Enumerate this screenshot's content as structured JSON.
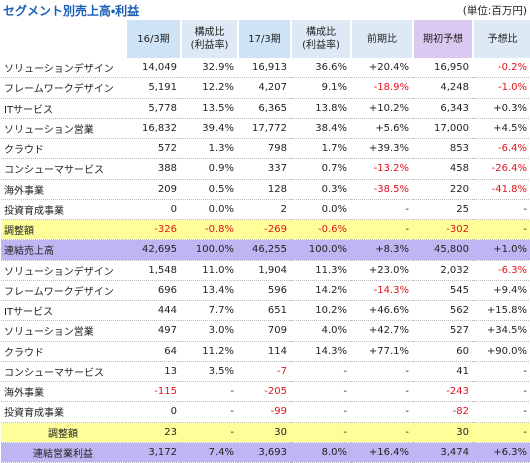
{
  "header": {
    "title": "セグメント別売上高・利益",
    "unit": "(単位:百万円)"
  },
  "table": {
    "columns": [
      "16/3期",
      "構成比\n(利益率)",
      "17/3期",
      "構成比\n(利益率)",
      "前期比",
      "期初予想",
      "予想比"
    ],
    "rows": [
      [
        "ソリューションデザイン",
        "14,049",
        "32.9%",
        "16,913",
        "36.6%",
        "+20.4%",
        "16,950",
        "-0.2%"
      ],
      [
        "フレームワークデザイン",
        "5,191",
        "12.2%",
        "4,207",
        "9.1%",
        "-18.9%",
        "4,248",
        "-1.0%"
      ],
      [
        "ITサービス",
        "5,778",
        "13.5%",
        "6,365",
        "13.8%",
        "+10.2%",
        "6,343",
        "+0.3%"
      ],
      [
        "ソリューション営業",
        "16,832",
        "39.4%",
        "17,772",
        "38.4%",
        "+5.6%",
        "17,000",
        "+4.5%"
      ],
      [
        "クラウド",
        "572",
        "1.3%",
        "798",
        "1.7%",
        "+39.3%",
        "853",
        "-6.4%"
      ],
      [
        "コンシューマサービス",
        "388",
        "0.9%",
        "337",
        "0.7%",
        "-13.2%",
        "458",
        "-26.4%"
      ],
      [
        "海外事業",
        "209",
        "0.5%",
        "128",
        "0.3%",
        "-38.5%",
        "220",
        "-41.8%"
      ],
      [
        "投資育成事業",
        "0",
        "0.0%",
        "2",
        "0.0%",
        "-",
        "25",
        "-"
      ],
      [
        "調整額",
        "-326",
        "-0.8%",
        "-269",
        "-0.6%",
        "-",
        "-302",
        "-"
      ],
      [
        "連結売上高",
        "42,695",
        "100.0%",
        "46,255",
        "100.0%",
        "+8.3%",
        "45,800",
        "+1.0%"
      ],
      [
        "ソリューションデザイン",
        "1,548",
        "11.0%",
        "1,904",
        "11.3%",
        "+23.0%",
        "2,032",
        "-6.3%"
      ],
      [
        "フレームワークデザイン",
        "696",
        "13.4%",
        "596",
        "14.2%",
        "-14.3%",
        "545",
        "+9.4%"
      ],
      [
        "ITサービス",
        "444",
        "7.7%",
        "651",
        "10.2%",
        "+46.6%",
        "562",
        "+15.8%"
      ],
      [
        "ソリューション営業",
        "497",
        "3.0%",
        "709",
        "4.0%",
        "+42.7%",
        "527",
        "+34.5%"
      ],
      [
        "クラウド",
        "64",
        "11.2%",
        "114",
        "14.3%",
        "+77.1%",
        "60",
        "+90.0%"
      ],
      [
        "コンシューマサービス",
        "13",
        "3.5%",
        "-7",
        "-",
        "-",
        "41",
        "-"
      ],
      [
        "海外事業",
        "-115",
        "-",
        "-205",
        "-",
        "-",
        "-243",
        "-"
      ],
      [
        "投資育成事業",
        "0",
        "-",
        "-99",
        "-",
        "-",
        "-82",
        "-"
      ],
      [
        "調整額",
        "23",
        "-",
        "30",
        "-",
        "-",
        "30",
        "-"
      ],
      [
        "連結営業利益",
        "3,172",
        "7.4%",
        "3,693",
        "8.0%",
        "+16.4%",
        "3,474",
        "+6.3%"
      ]
    ]
  }
}
